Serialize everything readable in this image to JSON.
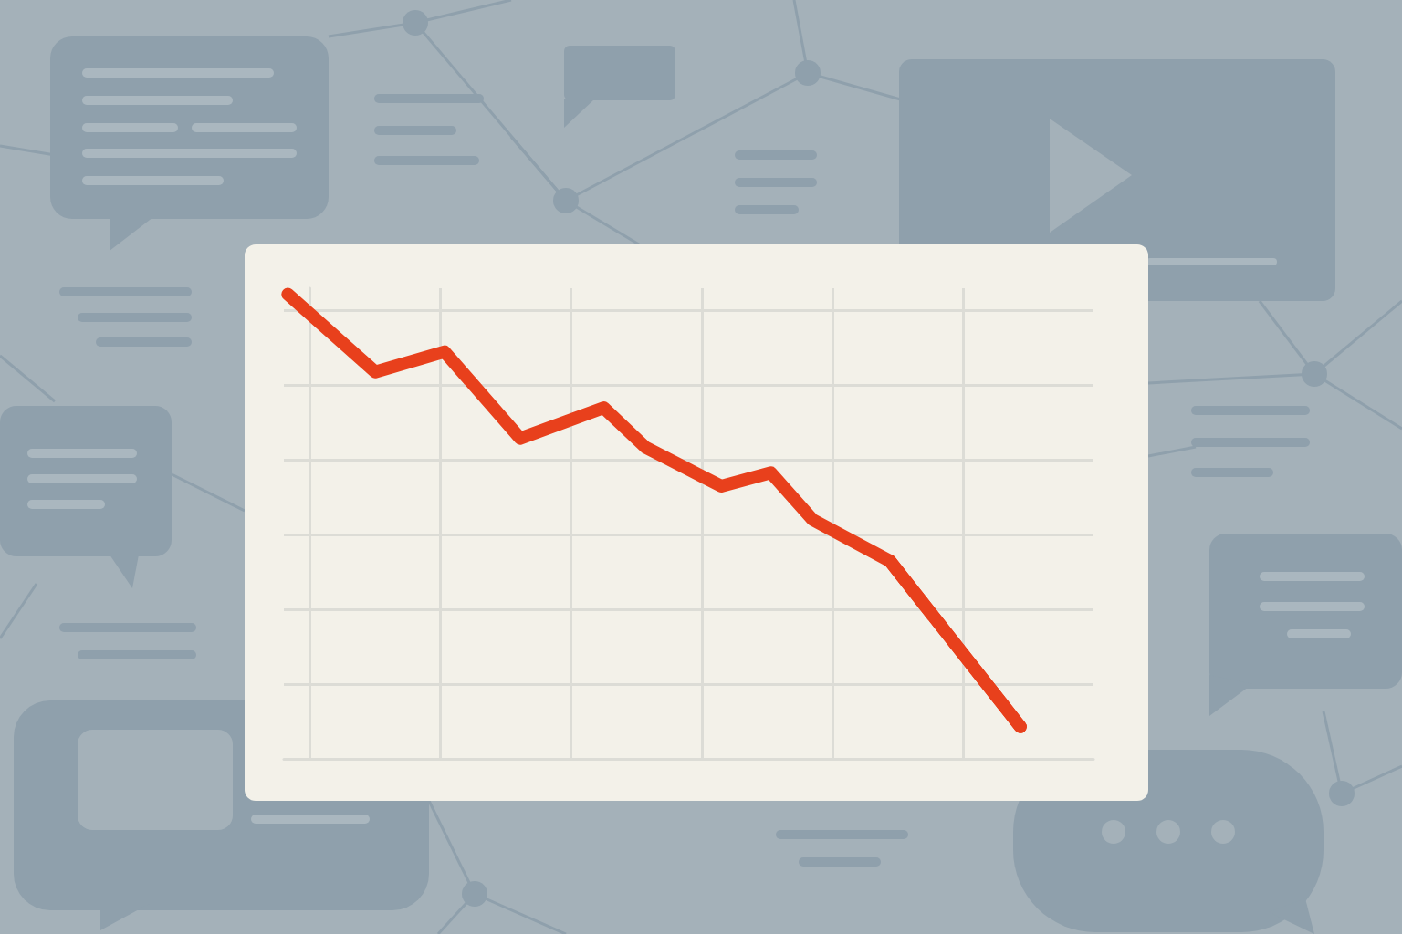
{
  "chart_data": {
    "type": "line",
    "x": [
      -0.17,
      0.5,
      1.03,
      1.61,
      2.25,
      2.57,
      3.15,
      3.53,
      3.85,
      4.44,
      5.44
    ],
    "values": [
      6.22,
      5.18,
      5.45,
      4.29,
      4.7,
      4.17,
      3.65,
      3.83,
      3.2,
      2.65,
      0.43
    ],
    "color": "#e8401c",
    "xlim": [
      -0.2,
      6
    ],
    "ylim": [
      0,
      6.3
    ],
    "xticks": [
      0,
      1,
      2,
      3,
      4,
      5
    ],
    "yticks": [
      0,
      1,
      2,
      3,
      4,
      5,
      6
    ],
    "grid": true,
    "tick_labels": false,
    "marker": "arrow"
  }
}
